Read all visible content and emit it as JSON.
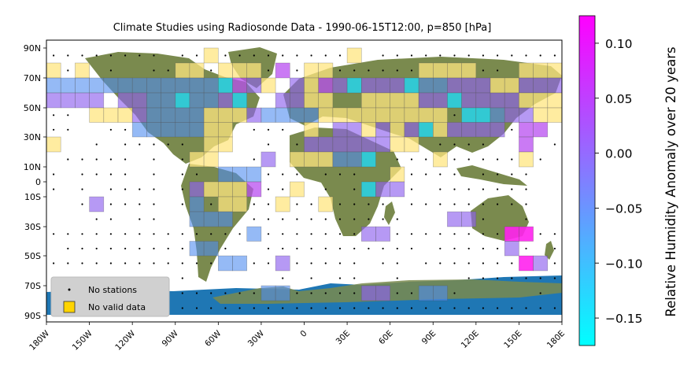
{
  "chart_data": {
    "type": "heatmap",
    "title": "Climate Studies using Radiosonde Data - 1990-06-15T12:00, p=850 [hPa]",
    "lon_ticks": [
      "180W",
      "150W",
      "120W",
      "90W",
      "60W",
      "30W",
      "0",
      "30E",
      "60E",
      "90E",
      "120E",
      "150E",
      "180E"
    ],
    "lat_ticks": [
      "90N",
      "70N",
      "50N",
      "30N",
      "10N",
      "0",
      "10S",
      "30S",
      "50S",
      "70S",
      "90S"
    ],
    "xlim": [
      -180,
      180
    ],
    "ylim": [
      -90,
      90
    ],
    "grid_step_deg": 10,
    "colorbar": {
      "label": "Relative Humidity Anomaly over 20 years",
      "ticks": [
        "0.10",
        "0.05",
        "0.00",
        "−0.05",
        "−0.10",
        "−0.15"
      ],
      "tick_values": [
        0.1,
        0.05,
        0.0,
        -0.05,
        -0.1,
        -0.15
      ],
      "range": [
        -0.175,
        0.125
      ],
      "colormap": "cool (cyan to magenta)"
    },
    "legend": {
      "placement": "lower-left",
      "items": [
        {
          "label": "No stations",
          "marker": "dot"
        },
        {
          "label": "No valid data",
          "marker": "yellow-square"
        }
      ]
    },
    "colors": {
      "ocean": "#1f77b4",
      "land": "#7a8a4e",
      "no_data": "#ffe680",
      "low": "#00ffff",
      "high": "#ff00ff"
    },
    "row_lats": [
      85,
      75,
      65,
      55,
      45,
      35,
      25,
      15,
      5,
      -5,
      -15,
      -25,
      -35,
      -45,
      -55,
      -65,
      -75,
      -85
    ],
    "rows": [
      "........#..d.........d#.............",
      "d.d#.##..dd.ddd.c.dd......dddd..#ddd",
      "aaaaaaaaaaaaAcbd#bdcbAbbbAaabbbddbbb",
      "bbbb#bbaaAaabA##bbdd##ddddbbAbbbbddd",
      "..#dddbaaaadddbaaaaddddddddd.AAabbdd",
      "..##..aaaaadd#...#d#bbdbdbAdbbbb.cc#",
      "d##.#.....#dd##.#.bbbbbbdd#....##c#.",
      "#.....#.#.dd##.b#dddaaA#...d.....d.#",
      ".#....#.#..#aaa...#...##d....#....##",
      ".#.#....#.bdddc..d#.#.Abb.#.......##",
      "##.b....#.a.dd..d..d....#.........##",
      "###..#..##aaa#...........###bb.##.##",
      "..............a.......bb........ff..",
      "#.........aa.##...........#.....b.#.",
      "............aa..b.....#..#.......fb.",
      ".....#..#.######.#.#..##.####.......",
      "...............aa.....bb..aa.#####.#",
      "...................................."
    ]
  }
}
